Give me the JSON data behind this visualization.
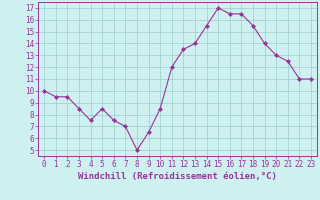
{
  "x": [
    0,
    1,
    2,
    3,
    4,
    5,
    6,
    7,
    8,
    9,
    10,
    11,
    12,
    13,
    14,
    15,
    16,
    17,
    18,
    19,
    20,
    21,
    22,
    23
  ],
  "y": [
    10,
    9.5,
    9.5,
    8.5,
    7.5,
    8.5,
    7.5,
    7,
    5,
    6.5,
    8.5,
    12,
    13.5,
    14,
    15.5,
    17,
    16.5,
    16.5,
    15.5,
    14,
    13,
    12.5,
    11,
    11
  ],
  "line_color": "#993399",
  "marker": "D",
  "marker_size": 2,
  "bg_color": "#cff0f0",
  "grid_color": "#99cccc",
  "xlabel": "Windchill (Refroidissement éolien,°C)",
  "xlabel_fontsize": 6.5,
  "ylim": [
    4.5,
    17.5
  ],
  "xlim": [
    -0.5,
    23.5
  ],
  "yticks": [
    5,
    6,
    7,
    8,
    9,
    10,
    11,
    12,
    13,
    14,
    15,
    16,
    17
  ],
  "xticks": [
    0,
    1,
    2,
    3,
    4,
    5,
    6,
    7,
    8,
    9,
    10,
    11,
    12,
    13,
    14,
    15,
    16,
    17,
    18,
    19,
    20,
    21,
    22,
    23
  ],
  "tick_fontsize": 5.5,
  "tick_color": "#993399",
  "spine_color": "#993399"
}
